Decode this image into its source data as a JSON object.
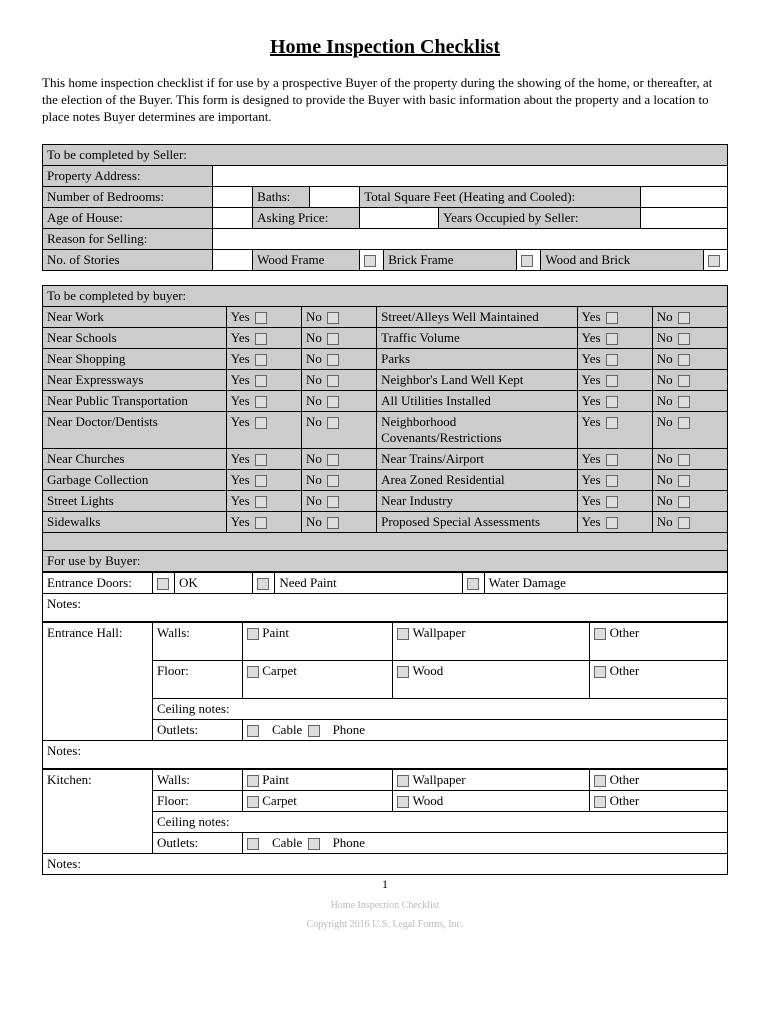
{
  "title": "Home Inspection Checklist",
  "intro": "This home inspection checklist if for use by a prospective Buyer of the property during the showing of the home, or thereafter, at the election of the Buyer.  This form is designed to provide the Buyer with basic information about the property and a location to place notes Buyer determines are important.",
  "seller": {
    "header": "To be completed by Seller:",
    "propertyAddress": "Property Address:",
    "numBedrooms": "Number of Bedrooms:",
    "baths": "Baths:",
    "totalSqFt": "Total Square Feet (Heating and Cooled):",
    "ageHouse": "Age of House:",
    "askingPrice": "Asking Price:",
    "yearsOccupied": "Years Occupied by Seller:",
    "reasonSelling": "Reason for Selling:",
    "noStories": "No. of Stories",
    "woodFrame": "Wood Frame",
    "brickFrame": "Brick Frame",
    "woodBrick": "Wood and Brick"
  },
  "buyer": {
    "header": "To be completed by buyer:",
    "yes": "Yes",
    "no": "No",
    "left": [
      "Near Work",
      "Near Schools",
      "Near Shopping",
      "Near Expressways",
      "Near Public Transportation",
      "Near Doctor/Dentists",
      "Near Churches",
      "Garbage Collection",
      "Street Lights",
      "Sidewalks"
    ],
    "right": [
      "Street/Alleys Well Maintained",
      "Traffic Volume",
      "Parks",
      "Neighbor's Land Well Kept",
      "All Utilities Installed",
      "Neighborhood Covenants/Restrictions",
      "Near Trains/Airport",
      "Area Zoned Residential",
      "Near Industry",
      "Proposed Special Assessments"
    ]
  },
  "forUseByBuyer": "For use by Buyer:",
  "entranceDoors": {
    "label": "Entrance Doors:",
    "ok": "OK",
    "needPaint": "Need Paint",
    "waterDamage": "Water Damage"
  },
  "notes": "Notes:",
  "entranceHall": {
    "label": "Entrance Hall:",
    "walls": "Walls:",
    "paint": "Paint",
    "wallpaper": "Wallpaper",
    "other": "Other",
    "floor": "Floor:",
    "carpet": "Carpet",
    "wood": "Wood",
    "ceiling": "Ceiling notes:",
    "outlets": "Outlets:",
    "cable": "Cable",
    "phone": "Phone"
  },
  "kitchen": {
    "label": "Kitchen:",
    "walls": "Walls:",
    "paint": "Paint",
    "wallpaper": "Wallpaper",
    "other": "Other",
    "floor": "Floor:",
    "carpet": "Carpet",
    "wood": "Wood",
    "ceiling": "Ceiling notes:",
    "outlets": "Outlets:",
    "cable": "Cable",
    "phone": "Phone"
  },
  "pageNum": "1",
  "footer1": "Home Inspection Checklist",
  "footer2": "Copyright 2016 U.S. Legal Forms, Inc."
}
